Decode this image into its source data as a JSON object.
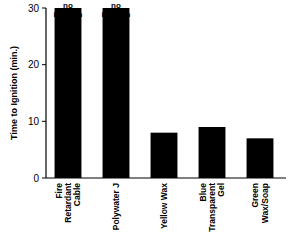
{
  "chart_data": {
    "type": "bar",
    "y_label": "Time to Ignition (min.)",
    "categories": [
      "Fire\nRetardant\nCable",
      "Polywater J",
      "Yellow Wax",
      "Blue\nTransparent\nGel",
      "Green\nWax/Soap"
    ],
    "values": [
      30,
      30,
      8,
      9,
      7
    ],
    "color": "#000000",
    "ylim": [
      0,
      30
    ],
    "yticks": [
      0,
      10,
      20,
      30
    ],
    "grid": false,
    "annotations": [
      {
        "text": "no\nignition",
        "category": 0
      },
      {
        "text": "no\nignition",
        "category": 1
      }
    ]
  }
}
